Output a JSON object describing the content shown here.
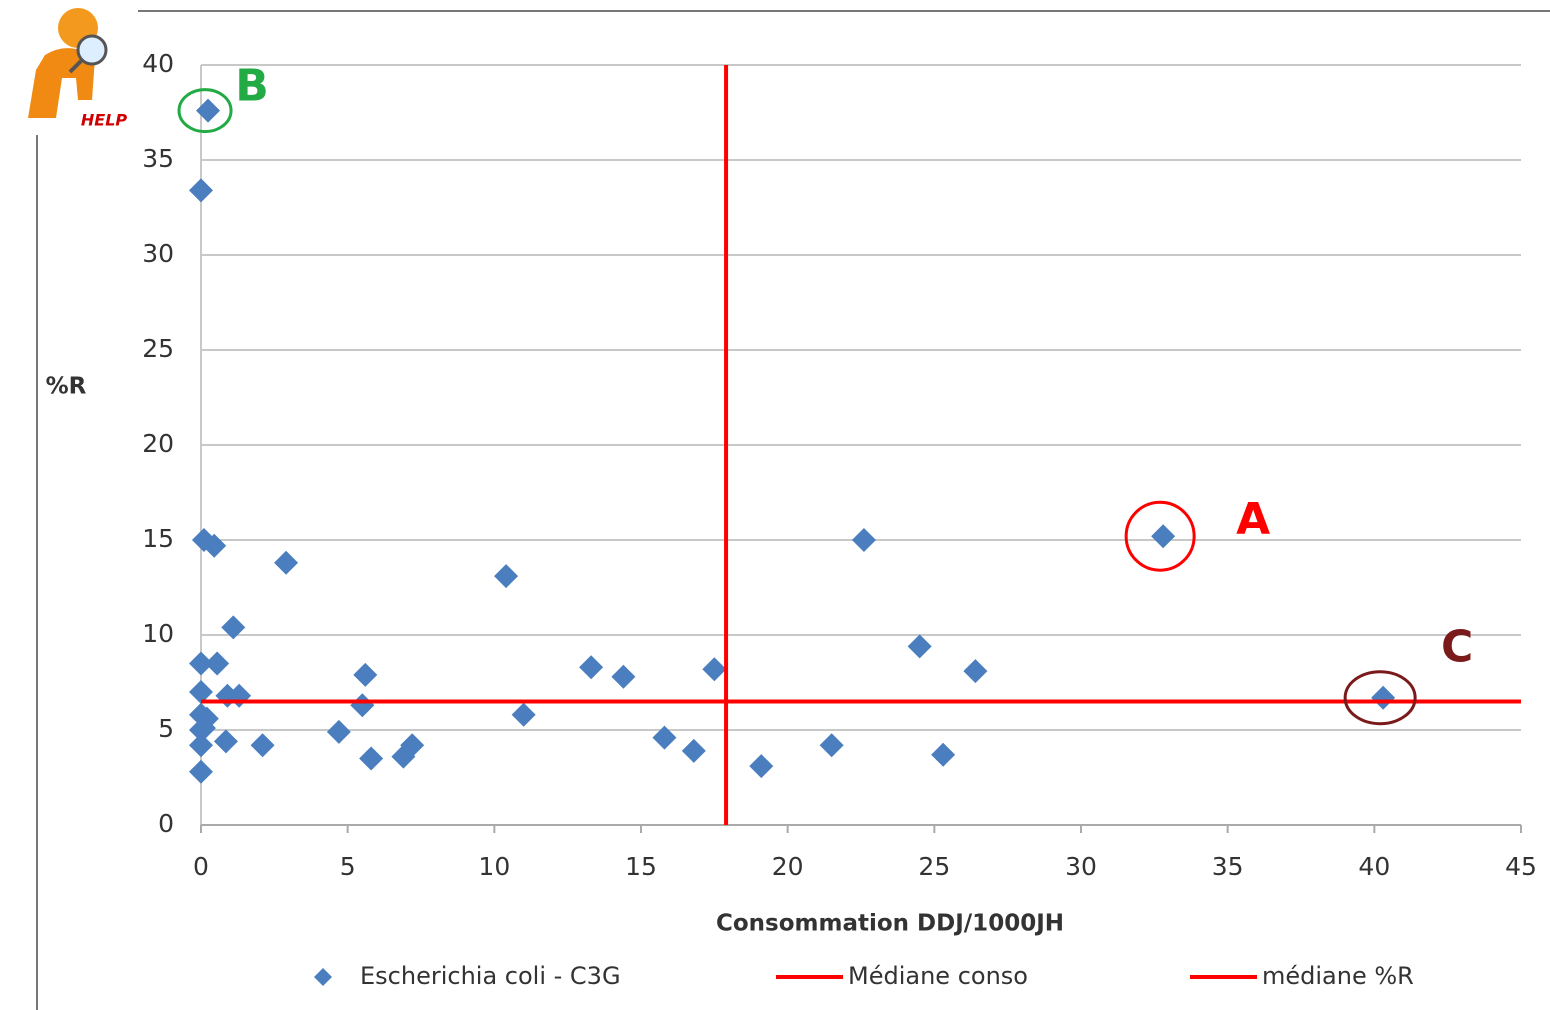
{
  "logo_text": "HELP",
  "chart_data": {
    "type": "scatter",
    "x_label": "Consommation DDJ/1000JH",
    "y_label": "%R",
    "x": [
      0.24,
      0,
      0.1,
      0.45,
      2.9,
      1.1,
      10.4,
      0,
      0.55,
      0,
      0.9,
      1.3,
      0,
      0.2,
      0,
      0.1,
      0,
      0.85,
      2.1,
      0,
      5.6,
      5.5,
      4.7,
      5.8,
      6.9,
      7.2,
      11.0,
      13.3,
      14.4,
      15.8,
      16.8,
      17.5,
      19.1,
      21.5,
      22.6,
      24.5,
      25.3,
      26.4,
      32.8,
      40.3
    ],
    "series": [
      {
        "name": "Escherichia coli - C3G",
        "color": "#4a7ebf",
        "values": [
          37.6,
          33.4,
          15.0,
          14.7,
          13.8,
          10.4,
          13.1,
          8.5,
          8.5,
          7.0,
          6.8,
          6.8,
          5.8,
          5.6,
          5.0,
          5.1,
          4.2,
          4.4,
          4.2,
          2.8,
          7.9,
          6.3,
          4.9,
          3.5,
          3.6,
          4.2,
          5.8,
          8.3,
          7.8,
          4.6,
          3.9,
          8.2,
          3.1,
          4.2,
          15.0,
          9.4,
          3.7,
          8.1,
          15.2,
          6.7
        ]
      }
    ],
    "reference_lines": [
      {
        "name": "Médiane conso",
        "color": "#ff0000",
        "x": 17.9
      },
      {
        "name": "médiane %R",
        "color": "#ff0000",
        "y": 6.5
      }
    ],
    "annotations": [
      {
        "text": "A",
        "color": "#ff0000",
        "x": 32.8,
        "y": 15.2
      },
      {
        "text": "B",
        "color": "#22aa44",
        "x": 0.24,
        "y": 37.6
      },
      {
        "text": "C",
        "color": "#7a1a1a",
        "x": 40.3,
        "y": 6.7
      }
    ],
    "xlim": [
      0,
      45
    ],
    "xticks": [
      0,
      5,
      10,
      15,
      20,
      25,
      30,
      35,
      40,
      45
    ],
    "ylim": [
      0,
      40
    ],
    "yticks": [
      0,
      5,
      10,
      15,
      20,
      25,
      30,
      35,
      40
    ],
    "grid": true
  }
}
